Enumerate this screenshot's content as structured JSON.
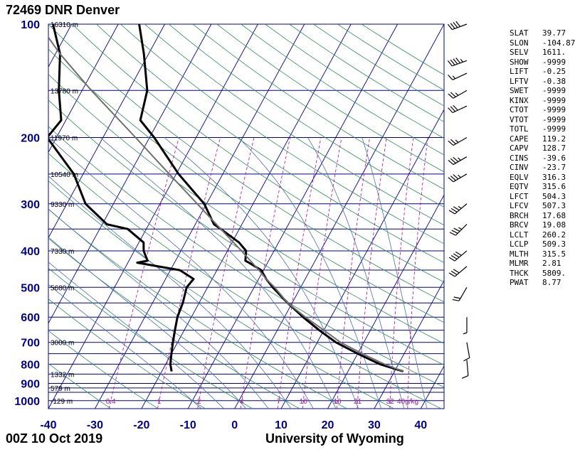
{
  "title": "72469 DNR Denver",
  "footer": {
    "datetime": "00Z 10 Oct 2019",
    "source": "University of Wyoming"
  },
  "chart_data": {
    "type": "skew-t log-p",
    "x_axis": {
      "label": "",
      "ticks": [
        -40,
        -30,
        -20,
        -10,
        0,
        10,
        20,
        30,
        40
      ],
      "units": "°C"
    },
    "y_axis": {
      "label": "",
      "ticks": [
        100,
        200,
        300,
        400,
        500,
        600,
        700,
        800,
        900,
        1000
      ],
      "units": "hPa",
      "scale": "log"
    },
    "height_labels": [
      {
        "p": 100,
        "text": "16310 m"
      },
      {
        "p": 150,
        "text": "13780 m"
      },
      {
        "p": 200,
        "text": "11970 m"
      },
      {
        "p": 250,
        "text": "10540 m"
      },
      {
        "p": 300,
        "text": "9330 m"
      },
      {
        "p": 400,
        "text": "7330 m"
      },
      {
        "p": 500,
        "text": "5680 m"
      },
      {
        "p": 700,
        "text": "3000 m"
      },
      {
        "p": 850,
        "text": "1332 m"
      },
      {
        "p": 925,
        "text": "579 m"
      },
      {
        "p": 1000,
        "text": "-129 m"
      }
    ],
    "mixing_ratio_labels": [
      "0.4",
      "1",
      "2",
      "4",
      "7",
      "10",
      "16",
      "21",
      "32",
      "40g/kg"
    ],
    "series": [
      {
        "name": "temperature",
        "color": "#000000",
        "points": [
          [
            836,
            31.9
          ],
          [
            800,
            26.0
          ],
          [
            750,
            20.0
          ],
          [
            700,
            14.0
          ],
          [
            650,
            9.0
          ],
          [
            600,
            4.0
          ],
          [
            550,
            -1.0
          ],
          [
            500,
            -6.0
          ],
          [
            475,
            -8.4
          ],
          [
            450,
            -10.5
          ],
          [
            430,
            -14.0
          ],
          [
            425,
            -15.0
          ],
          [
            400,
            -16.0
          ],
          [
            380,
            -18.5
          ],
          [
            350,
            -24.0
          ],
          [
            340,
            -26.0
          ],
          [
            300,
            -30.5
          ],
          [
            250,
            -39.5
          ],
          [
            200,
            -49.0
          ],
          [
            180,
            -54.0
          ],
          [
            150,
            -56.0
          ],
          [
            120,
            -61.0
          ],
          [
            100,
            -65.5
          ]
        ]
      },
      {
        "name": "dewpoint",
        "color": "#000000",
        "points": [
          [
            836,
            -17.9
          ],
          [
            800,
            -19.0
          ],
          [
            750,
            -20.0
          ],
          [
            700,
            -21.0
          ],
          [
            650,
            -22.0
          ],
          [
            600,
            -23.0
          ],
          [
            550,
            -23.5
          ],
          [
            500,
            -24.5
          ],
          [
            475,
            -24.0
          ],
          [
            450,
            -28.0
          ],
          [
            430,
            -38.0
          ],
          [
            425,
            -36.0
          ],
          [
            400,
            -38.0
          ],
          [
            380,
            -39.0
          ],
          [
            350,
            -44.0
          ],
          [
            340,
            -49.0
          ],
          [
            300,
            -56.0
          ],
          [
            250,
            -62.0
          ],
          [
            200,
            -72.0
          ],
          [
            180,
            -71.0
          ],
          [
            150,
            -75.0
          ],
          [
            120,
            -79.0
          ],
          [
            100,
            -84.0
          ]
        ]
      },
      {
        "name": "parcel",
        "color": "#6e6e6e",
        "points": [
          [
            836,
            31.9
          ],
          [
            800,
            27.0
          ],
          [
            750,
            21.0
          ],
          [
            700,
            15.0
          ],
          [
            650,
            10.0
          ],
          [
            600,
            4.5
          ],
          [
            550,
            -1.0
          ],
          [
            500,
            -5.6
          ],
          [
            475,
            -8.4
          ],
          [
            450,
            -11.0
          ],
          [
            400,
            -17.0
          ],
          [
            350,
            -24.0
          ],
          [
            300,
            -32.0
          ],
          [
            250,
            -41.5
          ],
          [
            200,
            -53.0
          ],
          [
            150,
            -68.0
          ],
          [
            120,
            -79.0
          ],
          [
            100,
            -87.0
          ]
        ]
      }
    ],
    "wind_barbs": [
      {
        "p": 100,
        "dir": 250,
        "spd": 40
      },
      {
        "p": 125,
        "dir": 250,
        "spd": 45
      },
      {
        "p": 135,
        "dir": 245,
        "spd": 15
      },
      {
        "p": 150,
        "dir": 240,
        "spd": 25
      },
      {
        "p": 165,
        "dir": 245,
        "spd": 30
      },
      {
        "p": 200,
        "dir": 240,
        "spd": 25
      },
      {
        "p": 225,
        "dir": 240,
        "spd": 35
      },
      {
        "p": 250,
        "dir": 240,
        "spd": 35
      },
      {
        "p": 300,
        "dir": 230,
        "spd": 35
      },
      {
        "p": 340,
        "dir": 225,
        "spd": 35
      },
      {
        "p": 400,
        "dir": 230,
        "spd": 40
      },
      {
        "p": 440,
        "dir": 230,
        "spd": 30
      },
      {
        "p": 500,
        "dir": 210,
        "spd": 20
      },
      {
        "p": 600,
        "dir": 180,
        "spd": 5
      },
      {
        "p": 700,
        "dir": 170,
        "spd": 10
      },
      {
        "p": 780,
        "dir": 175,
        "spd": 10
      }
    ]
  },
  "indices": [
    {
      "name": "SLAT",
      "value": "39.77"
    },
    {
      "name": "SLON",
      "value": "-104.87"
    },
    {
      "name": "SELV",
      "value": "1611."
    },
    {
      "name": "SHOW",
      "value": "-9999"
    },
    {
      "name": "LIFT",
      "value": "-0.25"
    },
    {
      "name": "LFTV",
      "value": "-0.38"
    },
    {
      "name": "SWET",
      "value": "-9999"
    },
    {
      "name": "KINX",
      "value": "-9999"
    },
    {
      "name": "CTOT",
      "value": "-9999"
    },
    {
      "name": "VTOT",
      "value": "-9999"
    },
    {
      "name": "TOTL",
      "value": "-9999"
    },
    {
      "name": "CAPE",
      "value": "119.2"
    },
    {
      "name": "CAPV",
      "value": "128.7"
    },
    {
      "name": "CINS",
      "value": "-39.6"
    },
    {
      "name": "CINV",
      "value": "-23.7"
    },
    {
      "name": "EQLV",
      "value": "316.3"
    },
    {
      "name": "EQTV",
      "value": "315.6"
    },
    {
      "name": "LFCT",
      "value": "504.3"
    },
    {
      "name": "LFCV",
      "value": "507.3"
    },
    {
      "name": "BRCH",
      "value": "17.68"
    },
    {
      "name": "BRCV",
      "value": "19.08"
    },
    {
      "name": "LCLT",
      "value": "260.2"
    },
    {
      "name": "LCLP",
      "value": "509.3"
    },
    {
      "name": "MLTH",
      "value": "315.5"
    },
    {
      "name": "MLMR",
      "value": "2.81"
    },
    {
      "name": "THCK",
      "value": "5809."
    },
    {
      "name": "PWAT",
      "value": "8.77"
    }
  ],
  "colors": {
    "isobar": "#00008b",
    "isotherm": "#00008b",
    "dry_adiabat": "#2e8b57",
    "moist_adiabat": "#4a6fa5",
    "mixing_ratio": "#b000b0",
    "axis_text": "#00008b",
    "mr_text": "#a020a0"
  }
}
